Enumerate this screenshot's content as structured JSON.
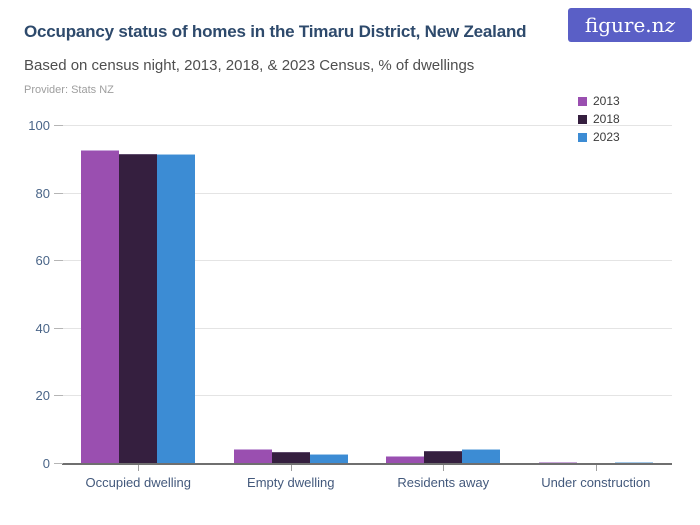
{
  "header": {
    "title": "Occupancy status of homes in the Timaru District, New Zealand",
    "subtitle": "Based on census night, 2013, 2018, & 2023 Census, % of dwellings",
    "provider": "Provider: Stats NZ",
    "logo": {
      "main": "figure.n",
      "z": "z"
    }
  },
  "colors": {
    "logo_bg": "#5a5fc6",
    "title_text": "#2e4a6c",
    "axis_label": "#4a6588",
    "category_label": "#43597c",
    "gridline": "#e4e4e4",
    "axis_line": "#6f6f6f"
  },
  "chart_data": {
    "type": "bar",
    "title": "Occupancy status of homes in the Timaru District, New Zealand",
    "subtitle": "Based on census night, 2013, 2018, & 2023 Census, % of dwellings",
    "xlabel": "",
    "ylabel": "% of dwellings",
    "categories": [
      "Occupied dwelling",
      "Empty dwelling",
      "Residents away",
      "Under construction"
    ],
    "series": [
      {
        "name": "2013",
        "color": "#9a4fb0",
        "top_edge_color": "#c9a6da",
        "values": [
          92.8,
          4.5,
          2.4,
          0.5
        ]
      },
      {
        "name": "2018",
        "color": "#351f3f",
        "top_edge_color": "#5e4a6b",
        "values": [
          91.6,
          3.6,
          3.9,
          0.2
        ]
      },
      {
        "name": "2023",
        "color": "#3c8cd4",
        "top_edge_color": "#a3c9ea",
        "values": [
          91.8,
          2.9,
          4.4,
          0.6
        ]
      }
    ],
    "yticks": [
      0,
      20,
      40,
      60,
      80,
      100
    ],
    "ylim": [
      0,
      100
    ],
    "grid": true,
    "legend_position": "top-right"
  }
}
